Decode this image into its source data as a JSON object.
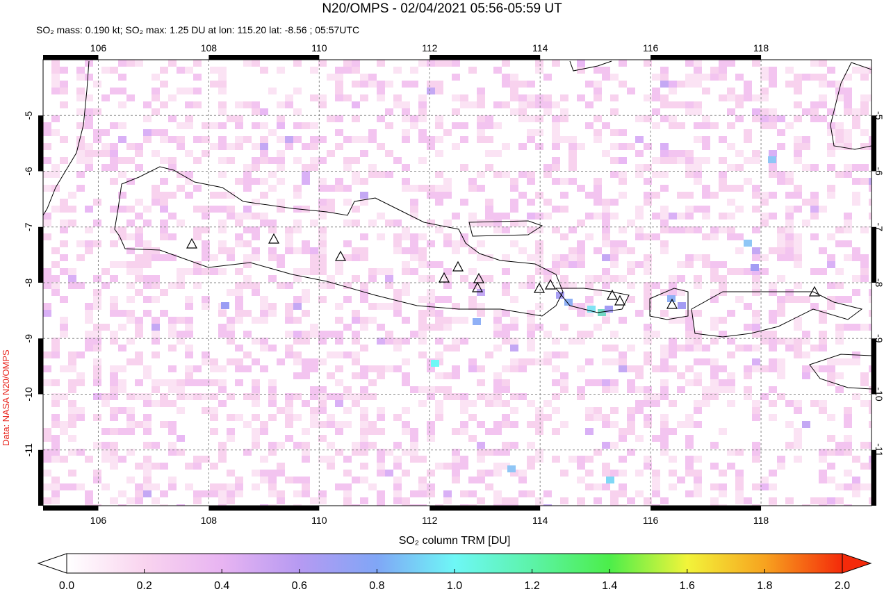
{
  "map": {
    "title": "N20/OMPS - 02/04/2021 05:56-05:59 UT",
    "subtitle": "SO₂ mass: 0.190 kt; SO₂ max: 1.25 DU at lon: 115.20 lat: -8.56 ; 05:57UTC",
    "credit": "Data: NASA N20/OMPS",
    "lonlim": [
      105,
      120
    ],
    "latlim": [
      -12,
      -4
    ],
    "lon_ticks": [
      106,
      108,
      110,
      112,
      114,
      116,
      118
    ],
    "lat_ticks": [
      -5,
      -6,
      -7,
      -8,
      -9,
      -10,
      -11
    ],
    "grid": true,
    "colorbar": {
      "label": "SO₂ column TRM [DU]",
      "lim": [
        0,
        2
      ],
      "ticks": [
        {
          "value": 0,
          "label": "0.0"
        },
        {
          "value": 0.2,
          "label": "0.2"
        },
        {
          "value": 0.4,
          "label": "0.4"
        },
        {
          "value": 0.6,
          "label": "0.6"
        },
        {
          "value": 0.8,
          "label": "0.8"
        },
        {
          "value": 1,
          "label": "1.0"
        },
        {
          "value": 1.2,
          "label": "1.2"
        },
        {
          "value": 1.4,
          "label": "1.4"
        },
        {
          "value": 1.6,
          "label": "1.6"
        },
        {
          "value": 1.8,
          "label": "1.8"
        },
        {
          "value": 2,
          "label": "2.0"
        }
      ]
    }
  }
}
